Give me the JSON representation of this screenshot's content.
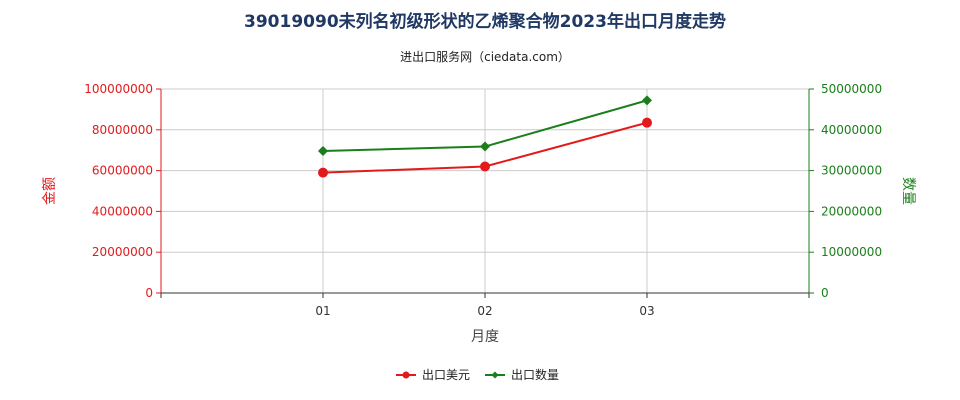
{
  "chart_data": {
    "type": "line",
    "title": "39019090未列名初级形状的乙烯聚合物2023年出口月度走势",
    "subtitle": "进出口服务网（ciedata.com）",
    "xlabel": "月度",
    "ylabel_left": "金额",
    "ylabel_right": "数量",
    "categories": [
      "01",
      "02",
      "03"
    ],
    "x_ticks": [
      "01",
      "02",
      "03"
    ],
    "y_left": {
      "min": 0,
      "max": 100000000,
      "ticks": [
        0,
        20000000,
        40000000,
        60000000,
        80000000,
        100000000
      ],
      "tick_labels": [
        "0",
        "20000000",
        "40000000",
        "60000000",
        "80000000",
        "100000000"
      ]
    },
    "y_right": {
      "min": 0,
      "max": 50000000,
      "ticks": [
        0,
        10000000,
        20000000,
        30000000,
        40000000,
        50000000
      ],
      "tick_labels": [
        "0",
        "10000000",
        "20000000",
        "30000000",
        "40000000",
        "50000000"
      ]
    },
    "series": [
      {
        "name": "出口美元",
        "axis": "left",
        "color": "#e31a1c",
        "marker": "circle",
        "values": [
          59000000,
          62000000,
          83500000
        ]
      },
      {
        "name": "出口数量",
        "axis": "right",
        "color": "#1a7f1a",
        "marker": "diamond",
        "values": [
          34800000,
          35900000,
          47200000
        ]
      }
    ],
    "grid": true,
    "legend_position": "bottom-center"
  },
  "colors": {
    "title": "#1f3864",
    "left_axis": "#e31a1c",
    "right_axis": "#1a7f1a",
    "grid": "#cccccc"
  }
}
